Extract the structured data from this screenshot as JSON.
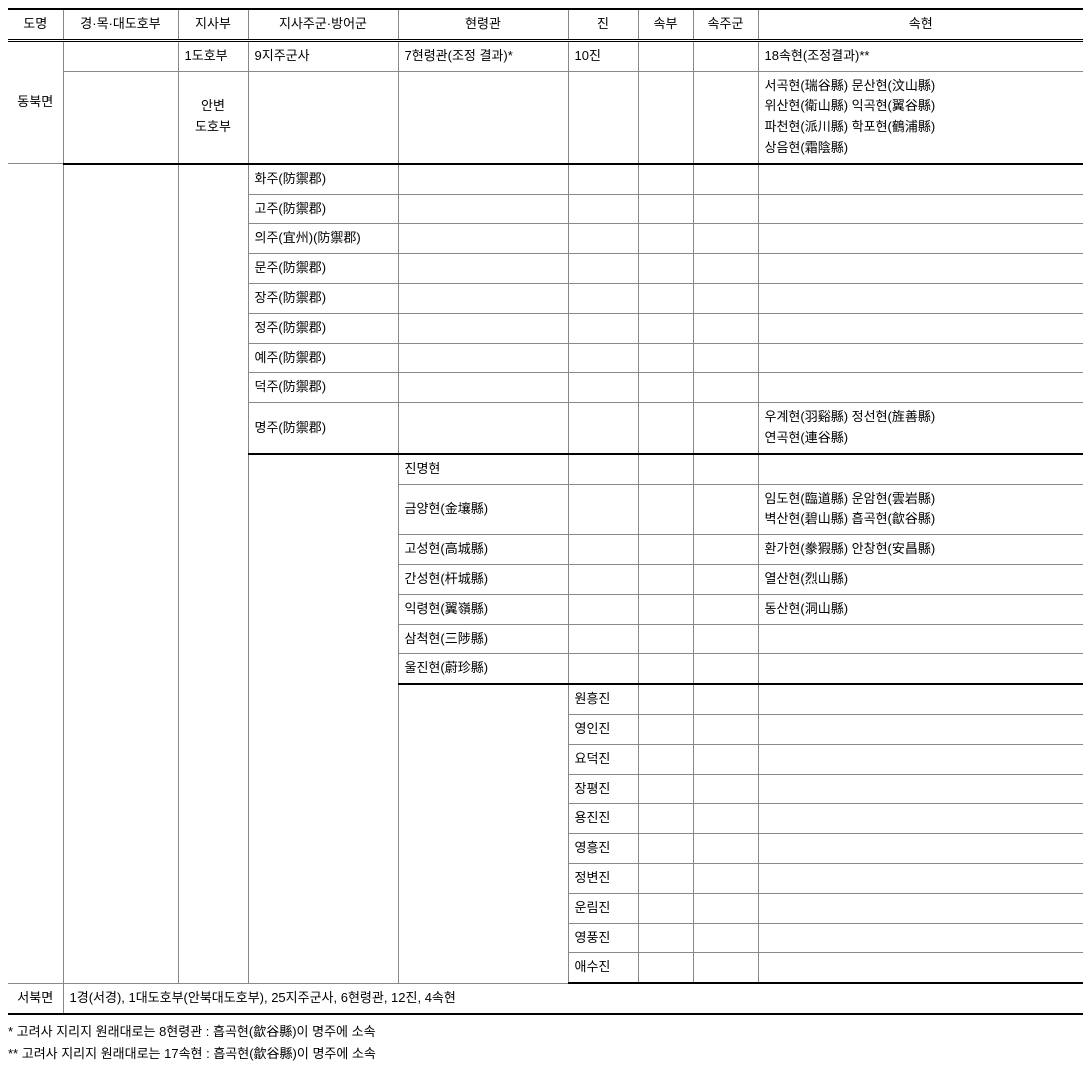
{
  "headers": [
    "도명",
    "경·목·대도호부",
    "지사부",
    "지사주군·방어군",
    "현령관",
    "진",
    "속부",
    "속주군",
    "속현"
  ],
  "summaryRow": {
    "c3": "1도호부",
    "c4": "9지주군사",
    "c5": "7현령관(조정 결과)*",
    "c6": "10진",
    "c9": "18속현(조정결과)**"
  },
  "dongbuk": {
    "label": "동북면",
    "jisabu": "안변\n도호부",
    "sokhyeon": "서곡현(瑞谷縣)  문산현(汶山縣)\n위산현(衛山縣)  익곡현(翼谷縣)\n파천현(派川縣)  학포현(鶴浦縣)\n상음현(霜陰縣)"
  },
  "jisajugunRows": [
    {
      "c4": "화주(防禦郡)"
    },
    {
      "c4": "고주(防禦郡)"
    },
    {
      "c4": "의주(宜州)(防禦郡)"
    },
    {
      "c4": "문주(防禦郡)"
    },
    {
      "c4": "장주(防禦郡)"
    },
    {
      "c4": "정주(防禦郡)"
    },
    {
      "c4": "예주(防禦郡)"
    },
    {
      "c4": "덕주(防禦郡)"
    },
    {
      "c4": "명주(防禦郡)",
      "c9": "우계현(羽谿縣)  정선현(旌善縣)\n연곡현(連谷縣)"
    }
  ],
  "hyeonryeongRows": [
    {
      "c5": "진명현"
    },
    {
      "c5": "금양현(金壤縣)",
      "c9": "임도현(臨道縣)  운암현(雲岩縣)\n벽산현(碧山縣)  흡곡현(歙谷縣)"
    },
    {
      "c5": "고성현(高城縣)",
      "c9": "환가현(豢猳縣)  안창현(安昌縣)"
    },
    {
      "c5": "간성현(杆城縣)",
      "c9": "열산현(烈山縣)"
    },
    {
      "c5": "익령현(翼嶺縣)",
      "c9": "동산현(洞山縣)"
    },
    {
      "c5": "삼척현(三陟縣)"
    },
    {
      "c5": "울진현(蔚珍縣)"
    }
  ],
  "jinRows": [
    {
      "c6": "원흥진"
    },
    {
      "c6": "영인진"
    },
    {
      "c6": "요덕진"
    },
    {
      "c6": "장평진"
    },
    {
      "c6": "용진진"
    },
    {
      "c6": "영흥진"
    },
    {
      "c6": "정변진"
    },
    {
      "c6": "운림진"
    },
    {
      "c6": "영풍진"
    },
    {
      "c6": "애수진"
    }
  ],
  "seobuk": {
    "label": "서북면",
    "text": "1경(서경), 1대도호부(안북대도호부), 25지주군사, 6현령관, 12진, 4속현"
  },
  "notes": [
    "* 고려사 지리지 원래대로는 8현령관 : 흡곡현(歙谷縣)이 명주에 소속",
    "** 고려사 지리지 원래대로는 17속현 : 흡곡현(歙谷縣)이 명주에 소속"
  ]
}
